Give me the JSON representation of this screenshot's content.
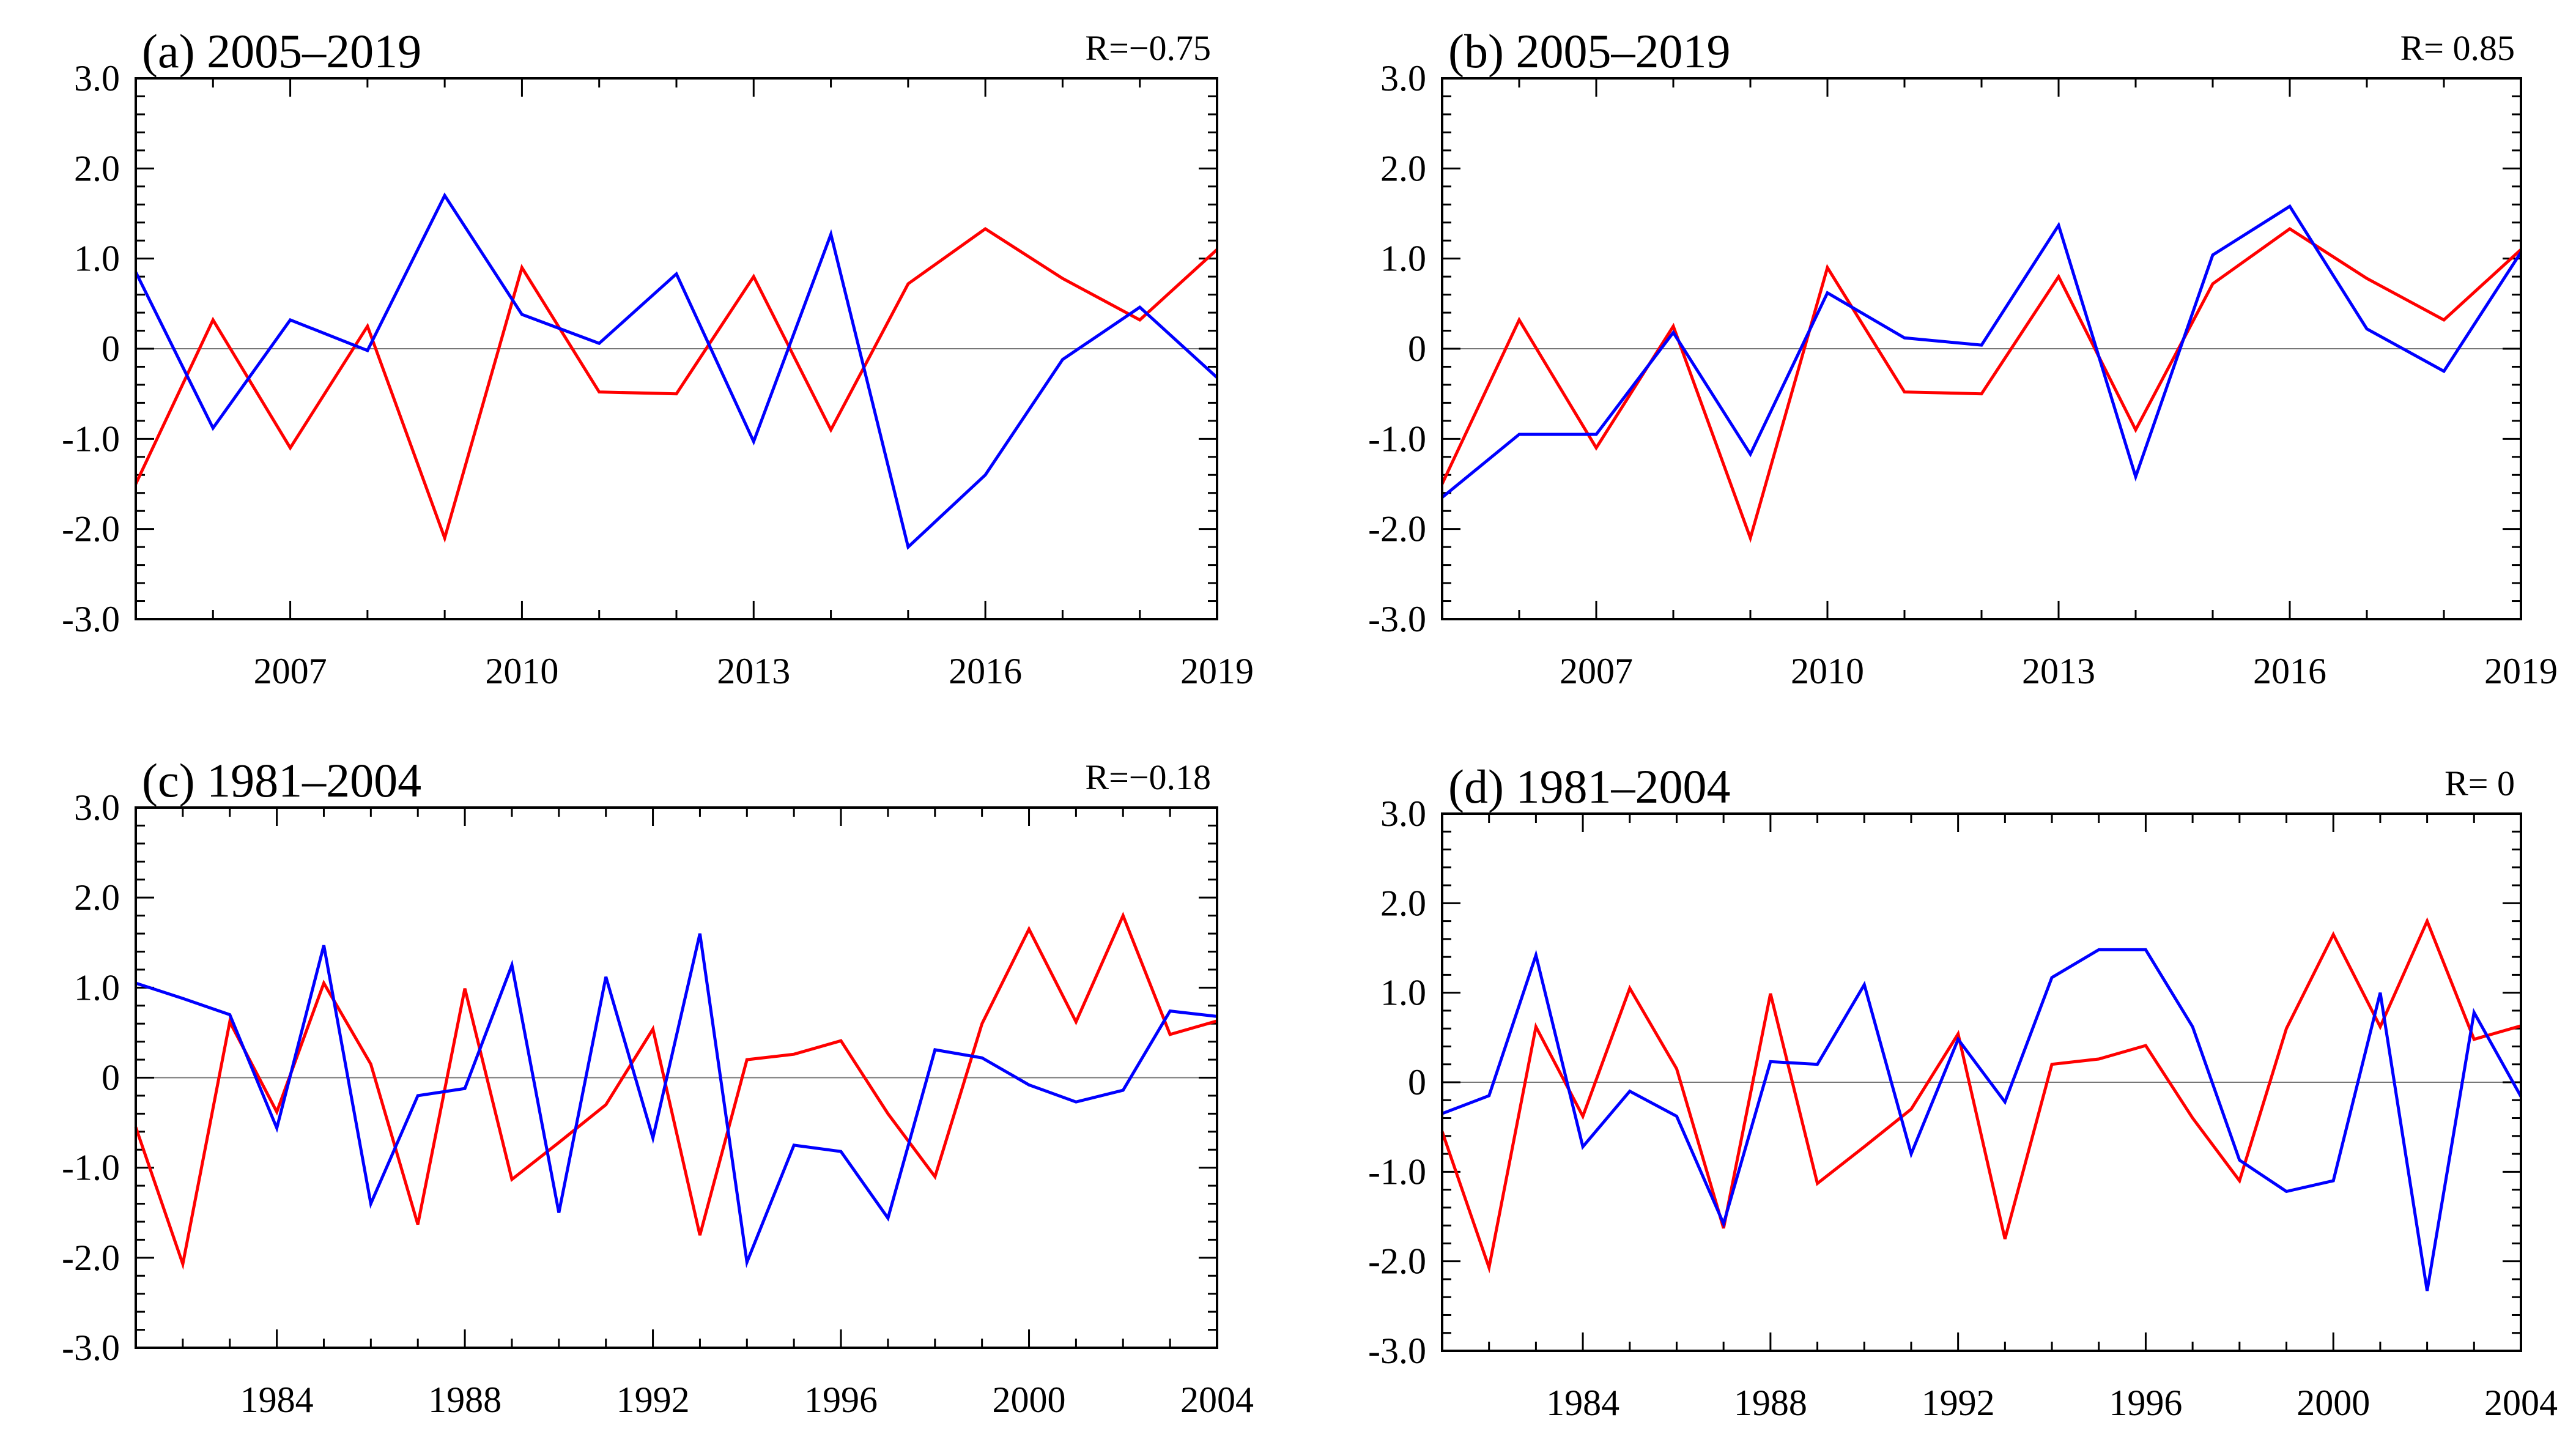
{
  "figure": {
    "background": "#ffffff",
    "red_color": "#ff0000",
    "blue_color": "#0000ff"
  },
  "chart_data": [
    {
      "id": "a",
      "type": "line",
      "title": "(a) 2005–2019",
      "r_text": "R=−0.75",
      "xlim": [
        2005,
        2019
      ],
      "ylim": [
        -3,
        3
      ],
      "x_ticks": [
        2007,
        2010,
        2013,
        2016,
        2019
      ],
      "x_tick_labels": [
        "2007",
        "2010",
        "2013",
        "2016",
        "2019"
      ],
      "y_ticks": [
        3,
        2,
        1,
        0,
        -1,
        -2,
        -3
      ],
      "y_tick_labels": [
        "3.0",
        "2.0",
        "1.0",
        "0",
        "-1.0",
        "-2.0",
        "-3.0"
      ],
      "x": [
        2005,
        2006,
        2007,
        2008,
        2009,
        2010,
        2011,
        2012,
        2013,
        2014,
        2015,
        2016,
        2017,
        2018,
        2019
      ],
      "series": [
        {
          "name": "red",
          "color": "#ff0000",
          "values": [
            -1.5,
            0.32,
            -1.1,
            0.25,
            -2.1,
            0.9,
            -0.48,
            -0.5,
            0.8,
            -0.9,
            0.72,
            1.33,
            0.78,
            0.32,
            1.1
          ]
        },
        {
          "name": "blue",
          "color": "#0000ff",
          "values": [
            0.85,
            -0.88,
            0.32,
            -0.02,
            1.7,
            0.38,
            0.06,
            0.83,
            -1.03,
            1.27,
            -2.2,
            -1.4,
            -0.12,
            0.46,
            -0.32
          ]
        }
      ]
    },
    {
      "id": "b",
      "type": "line",
      "title": "(b) 2005–2019",
      "r_text": "R= 0.85",
      "xlim": [
        2005,
        2019
      ],
      "ylim": [
        -3,
        3
      ],
      "x_ticks": [
        2007,
        2010,
        2013,
        2016,
        2019
      ],
      "x_tick_labels": [
        "2007",
        "2010",
        "2013",
        "2016",
        "2019"
      ],
      "y_ticks": [
        3,
        2,
        1,
        0,
        -1,
        -2,
        -3
      ],
      "y_tick_labels": [
        "3.0",
        "2.0",
        "1.0",
        "0",
        "-1.0",
        "-2.0",
        "-3.0"
      ],
      "x": [
        2005,
        2006,
        2007,
        2008,
        2009,
        2010,
        2011,
        2012,
        2013,
        2014,
        2015,
        2016,
        2017,
        2018,
        2019
      ],
      "series": [
        {
          "name": "red",
          "color": "#ff0000",
          "values": [
            -1.5,
            0.32,
            -1.1,
            0.25,
            -2.1,
            0.9,
            -0.48,
            -0.5,
            0.8,
            -0.9,
            0.72,
            1.33,
            0.78,
            0.32,
            1.1
          ]
        },
        {
          "name": "blue",
          "color": "#0000ff",
          "values": [
            -1.65,
            -0.95,
            -0.95,
            0.18,
            -1.17,
            0.62,
            0.12,
            0.04,
            1.37,
            -1.42,
            1.04,
            1.58,
            0.22,
            -0.25,
            1.07
          ]
        }
      ]
    },
    {
      "id": "c",
      "type": "line",
      "title": "(c) 1981–2004",
      "r_text": "R=−0.18",
      "xlim": [
        1981,
        2004
      ],
      "ylim": [
        -3,
        3
      ],
      "x_ticks": [
        1984,
        1988,
        1992,
        1996,
        2000,
        2004
      ],
      "x_tick_labels": [
        "1984",
        "1988",
        "1992",
        "1996",
        "2000",
        "2004"
      ],
      "y_ticks": [
        3,
        2,
        1,
        0,
        -1,
        -2,
        -3
      ],
      "y_tick_labels": [
        "3.0",
        "2.0",
        "1.0",
        "0",
        "-1.0",
        "-2.0",
        "-3.0"
      ],
      "x": [
        1981,
        1982,
        1983,
        1984,
        1985,
        1986,
        1987,
        1988,
        1989,
        1990,
        1991,
        1992,
        1993,
        1994,
        1995,
        1996,
        1997,
        1998,
        1999,
        2000,
        2001,
        2002,
        2003,
        2004
      ],
      "series": [
        {
          "name": "red",
          "color": "#ff0000",
          "values": [
            -0.55,
            -2.07,
            0.62,
            -0.38,
            1.05,
            0.15,
            -1.63,
            0.99,
            -1.13,
            -0.72,
            -0.3,
            0.54,
            -1.75,
            0.2,
            0.26,
            0.41,
            -0.4,
            -1.1,
            0.6,
            1.65,
            0.62,
            1.8,
            0.48,
            0.63
          ]
        },
        {
          "name": "blue",
          "color": "#0000ff",
          "values": [
            1.05,
            0.88,
            0.7,
            -0.56,
            1.47,
            -1.4,
            -0.2,
            -0.12,
            1.25,
            -1.5,
            1.12,
            -0.67,
            1.6,
            -2.05,
            -0.75,
            -0.82,
            -1.56,
            0.31,
            0.22,
            -0.08,
            -0.27,
            -0.14,
            0.74,
            0.68
          ]
        }
      ]
    },
    {
      "id": "d",
      "type": "line",
      "title": "(d) 1981–2004",
      "r_text": "R= 0",
      "xlim": [
        1981,
        2004
      ],
      "ylim": [
        -3,
        3
      ],
      "x_ticks": [
        1984,
        1988,
        1992,
        1996,
        2000,
        2004
      ],
      "x_tick_labels": [
        "1984",
        "1988",
        "1992",
        "1996",
        "2000",
        "2004"
      ],
      "y_ticks": [
        3,
        2,
        1,
        0,
        -1,
        -2,
        -3
      ],
      "y_tick_labels": [
        "3.0",
        "2.0",
        "1.0",
        "0",
        "-1.0",
        "-2.0",
        "-3.0"
      ],
      "x": [
        1981,
        1982,
        1983,
        1984,
        1985,
        1986,
        1987,
        1988,
        1989,
        1990,
        1991,
        1992,
        1993,
        1994,
        1995,
        1996,
        1997,
        1998,
        1999,
        2000,
        2001,
        2002,
        2003,
        2004
      ],
      "series": [
        {
          "name": "red",
          "color": "#ff0000",
          "values": [
            -0.55,
            -2.07,
            0.62,
            -0.38,
            1.05,
            0.15,
            -1.63,
            0.99,
            -1.13,
            -0.72,
            -0.3,
            0.54,
            -1.75,
            0.2,
            0.26,
            0.41,
            -0.4,
            -1.1,
            0.6,
            1.65,
            0.62,
            1.8,
            0.48,
            0.63
          ]
        },
        {
          "name": "blue",
          "color": "#0000ff",
          "values": [
            -0.35,
            -0.15,
            1.42,
            -0.72,
            -0.1,
            -0.38,
            -1.58,
            0.23,
            0.2,
            1.09,
            -0.8,
            0.48,
            -0.22,
            1.17,
            1.48,
            1.48,
            0.62,
            -0.87,
            -1.22,
            -1.1,
            1.0,
            -2.33,
            0.78,
            -0.16
          ]
        }
      ]
    }
  ]
}
